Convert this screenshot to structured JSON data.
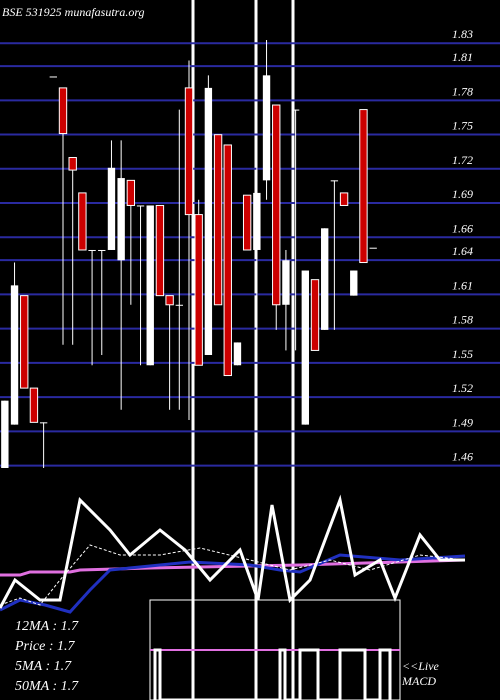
{
  "header": {
    "title": "BSE 531925 munafasutra.org"
  },
  "chart_data": {
    "type": "candlestick",
    "categories": [
      null,
      null,
      null,
      null,
      null,
      null,
      null,
      null,
      null,
      null,
      null,
      null,
      null,
      null,
      null,
      null,
      null,
      null,
      null,
      null,
      null,
      null,
      null,
      null,
      null,
      null,
      null,
      null,
      null,
      null,
      null,
      null,
      null,
      null,
      null,
      null,
      null,
      null,
      null
    ],
    "open": [
      1.45,
      1.488,
      1.601,
      1.52,
      1.49,
      1.793,
      1.783,
      1.722,
      1.691,
      1.641,
      1.641,
      1.641,
      1.632,
      1.702,
      1.68,
      1.54,
      1.68,
      1.601,
      1.593,
      1.783,
      1.672,
      1.549,
      1.742,
      1.733,
      1.54,
      1.689,
      1.641,
      1.702,
      1.768,
      1.593,
      1.764,
      1.488,
      1.615,
      1.571,
      1.702,
      1.691,
      1.601,
      1.764,
      1.643
    ],
    "high": [
      1.509,
      1.63,
      1.601,
      1.52,
      1.49,
      1.793,
      1.783,
      1.722,
      1.691,
      1.641,
      1.641,
      1.737,
      1.737,
      1.702,
      1.68,
      1.68,
      1.68,
      1.601,
      1.764,
      1.807,
      1.685,
      1.794,
      1.742,
      1.733,
      1.56,
      1.689,
      1.715,
      1.825,
      1.768,
      1.641,
      1.764,
      1.623,
      1.615,
      1.66,
      1.702,
      1.691,
      1.623,
      1.764,
      1.643
    ],
    "low": [
      1.45,
      1.488,
      1.52,
      1.49,
      1.45,
      1.793,
      1.558,
      1.558,
      1.641,
      1.54,
      1.549,
      1.641,
      1.501,
      1.593,
      1.54,
      1.54,
      1.601,
      1.501,
      1.501,
      1.492,
      1.54,
      1.549,
      1.593,
      1.531,
      1.54,
      1.641,
      1.562,
      1.685,
      1.571,
      1.553,
      1.553,
      1.488,
      1.553,
      1.571,
      1.571,
      1.68,
      1.601,
      1.63,
      1.643
    ],
    "close": [
      1.509,
      1.61,
      1.52,
      1.49,
      1.49,
      1.793,
      1.743,
      1.711,
      1.641,
      1.641,
      1.641,
      1.713,
      1.704,
      1.68,
      1.68,
      1.68,
      1.601,
      1.593,
      1.593,
      1.672,
      1.54,
      1.783,
      1.593,
      1.531,
      1.56,
      1.641,
      1.691,
      1.794,
      1.593,
      1.632,
      1.764,
      1.623,
      1.553,
      1.66,
      1.702,
      1.68,
      1.623,
      1.63,
      1.643
    ],
    "up_color": "#ffffff",
    "down_color": "#cc0000",
    "grid_color": "#2a2aa0",
    "ylim": [
      1.45,
      1.86
    ],
    "yticks": [
      1.83,
      1.81,
      1.78,
      1.75,
      1.72,
      1.69,
      1.66,
      1.64,
      1.61,
      1.58,
      1.55,
      1.52,
      1.49,
      1.46
    ],
    "grid": true
  },
  "indicators": {
    "ma12": "12MA : 1.7",
    "price": "Price : 1.7",
    "ma5": "5MA : 1.7",
    "ma50": "50MA : 1.7",
    "live": "<<Live",
    "macd": "MACD"
  }
}
